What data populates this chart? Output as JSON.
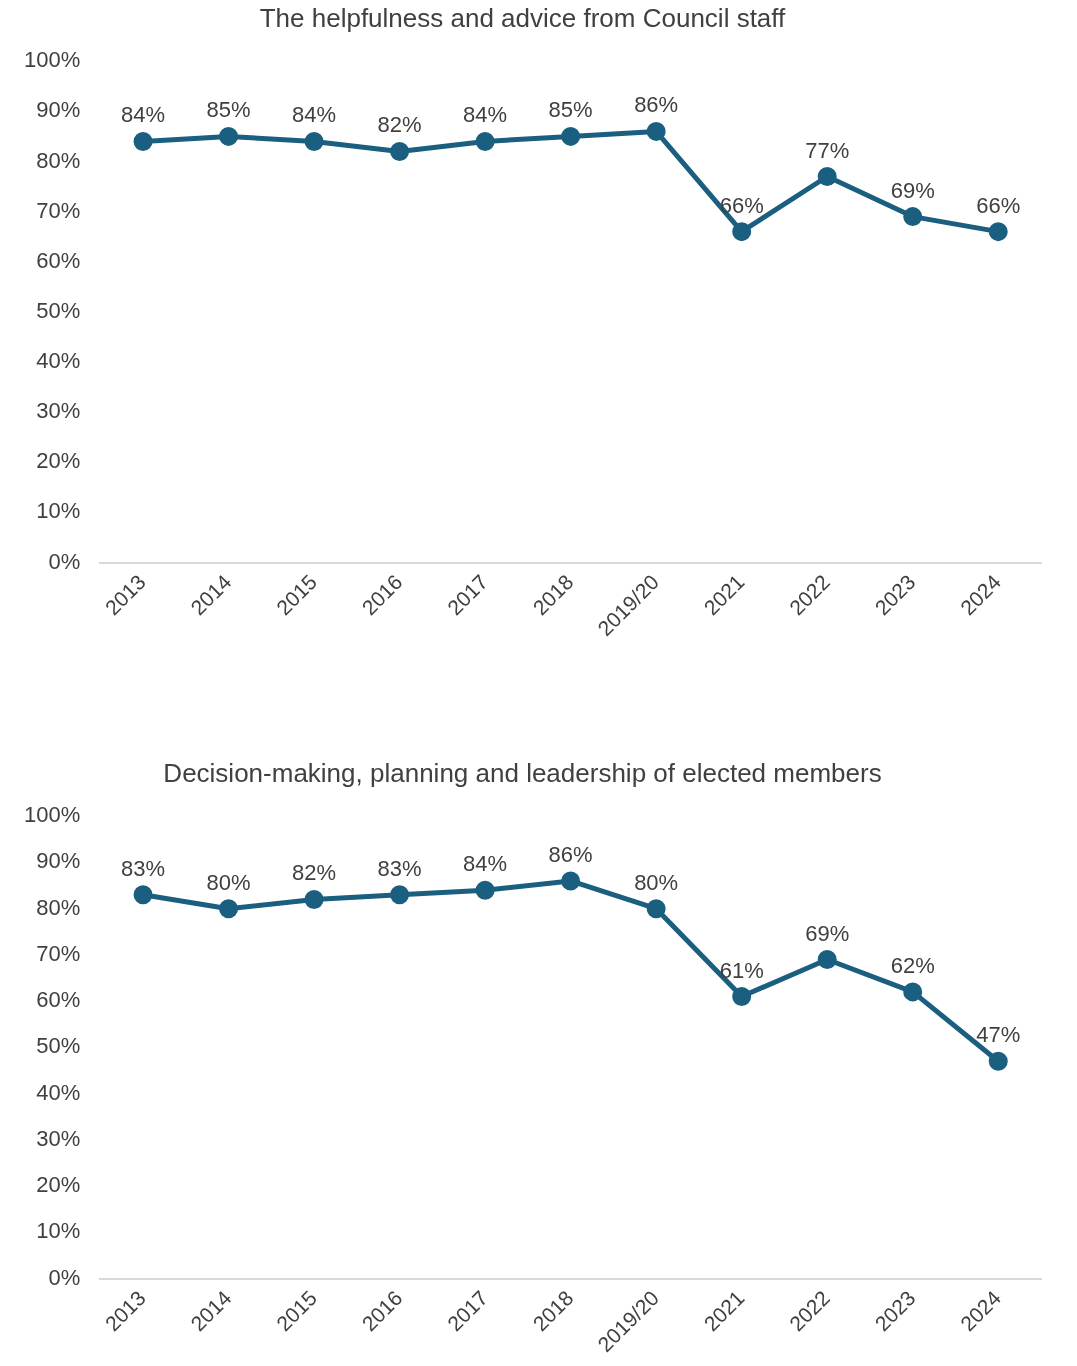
{
  "chart_data": [
    {
      "type": "line",
      "title": "The helpfulness and advice from Council staff",
      "categories": [
        "2013",
        "2014",
        "2015",
        "2016",
        "2017",
        "2018",
        "2019/20",
        "2021",
        "2022",
        "2023",
        "2024"
      ],
      "series": [
        {
          "color": "#1b5f80",
          "values": [
            84,
            85,
            84,
            82,
            84,
            85,
            86,
            66,
            77,
            69,
            66
          ],
          "value_labels": [
            "84%",
            "85%",
            "84%",
            "82%",
            "84%",
            "85%",
            "86%",
            "66%",
            "77%",
            "69%",
            "66%"
          ]
        }
      ],
      "ylim": [
        0,
        100
      ],
      "yticks": [
        {
          "value": 0,
          "label": "0%"
        },
        {
          "value": 10,
          "label": "10%"
        },
        {
          "value": 20,
          "label": "20%"
        },
        {
          "value": 30,
          "label": "30%"
        },
        {
          "value": 40,
          "label": "40%"
        },
        {
          "value": 50,
          "label": "50%"
        },
        {
          "value": 60,
          "label": "60%"
        },
        {
          "value": 70,
          "label": "70%"
        },
        {
          "value": 80,
          "label": "80%"
        },
        {
          "value": 90,
          "label": "90%"
        },
        {
          "value": 100,
          "label": "100%"
        }
      ],
      "grid": false,
      "legend": false,
      "marker": "circle"
    },
    {
      "type": "line",
      "title": "Decision-making, planning and leadership of elected members",
      "categories": [
        "2013",
        "2014",
        "2015",
        "2016",
        "2017",
        "2018",
        "2019/20",
        "2021",
        "2022",
        "2023",
        "2024"
      ],
      "series": [
        {
          "color": "#1b5f80",
          "values": [
            83,
            80,
            82,
            83,
            84,
            86,
            80,
            61,
            69,
            62,
            47
          ],
          "value_labels": [
            "83%",
            "80%",
            "82%",
            "83%",
            "84%",
            "86%",
            "80%",
            "61%",
            "69%",
            "62%",
            "47%"
          ]
        }
      ],
      "ylim": [
        0,
        100
      ],
      "yticks": [
        {
          "value": 0,
          "label": "0%"
        },
        {
          "value": 10,
          "label": "10%"
        },
        {
          "value": 20,
          "label": "20%"
        },
        {
          "value": 30,
          "label": "30%"
        },
        {
          "value": 40,
          "label": "40%"
        },
        {
          "value": 50,
          "label": "50%"
        },
        {
          "value": 60,
          "label": "60%"
        },
        {
          "value": 70,
          "label": "70%"
        },
        {
          "value": 80,
          "label": "80%"
        },
        {
          "value": 90,
          "label": "90%"
        },
        {
          "value": 100,
          "label": "100%"
        }
      ],
      "grid": false,
      "legend": false,
      "marker": "circle"
    }
  ]
}
